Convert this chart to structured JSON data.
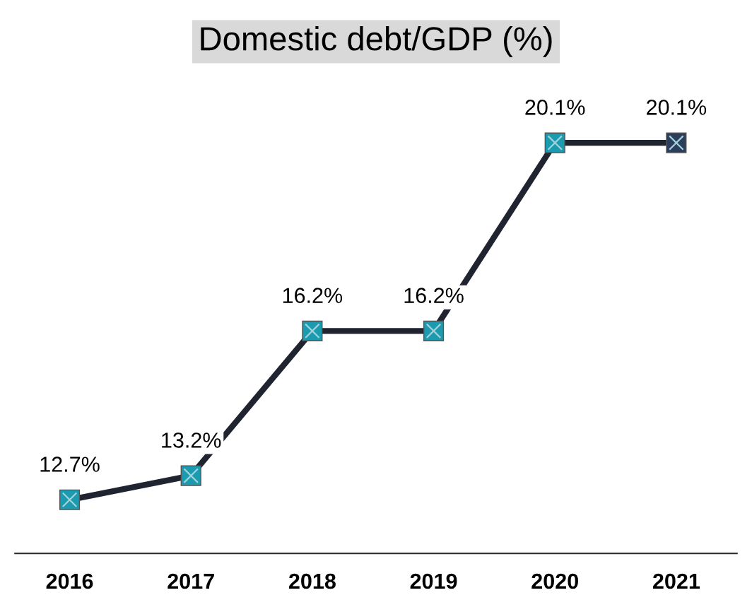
{
  "chart_data": {
    "type": "line",
    "title": "Domestic debt/GDP (%)",
    "categories": [
      "2016",
      "2017",
      "2018",
      "2019",
      "2020",
      "2021"
    ],
    "series": [
      {
        "color": "#1f2430",
        "colors": [
          "#1a9bb0",
          "#1a9bb0",
          "#1a9bb0",
          "#1a9bb0",
          "#1a9bb0",
          "#2d3e5c"
        ],
        "values": [
          12.7,
          13.2,
          16.2,
          16.2,
          20.1,
          20.1
        ],
        "value_labels": [
          "12.7%",
          "13.2%",
          "16.2%",
          "16.2%",
          "20.1%",
          "20.1%"
        ]
      }
    ],
    "marker": "square",
    "grid": false,
    "legend": false
  }
}
